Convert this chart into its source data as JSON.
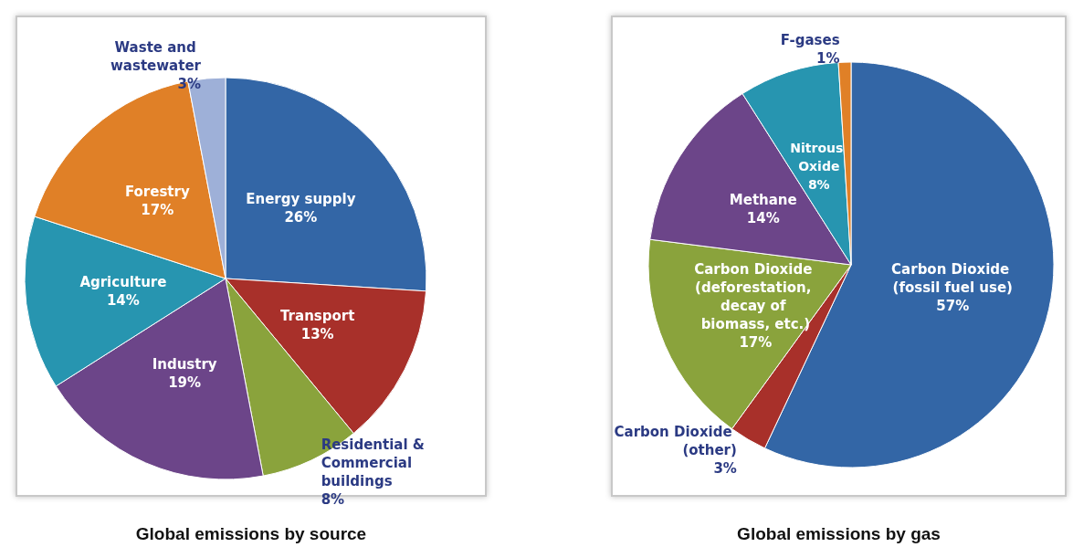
{
  "chart_data": [
    {
      "type": "pie",
      "title": "Global emissions by source",
      "categories": [
        "Energy supply",
        "Transport",
        "Residential & Commercial buildings",
        "Industry",
        "Agriculture",
        "Forestry",
        "Waste and wastewater"
      ],
      "values": [
        26,
        13,
        8,
        19,
        14,
        17,
        3
      ],
      "value_labels": [
        "26%",
        "13%",
        "8%",
        "19%",
        "14%",
        "17%",
        "3%"
      ],
      "colors": [
        "#3366a6",
        "#a8302a",
        "#8aa33c",
        "#6c4589",
        "#2795b0",
        "#e08027",
        "#9eb0d8"
      ],
      "legend": false
    },
    {
      "type": "pie",
      "title": "Global emissions by gas",
      "categories": [
        "Carbon Dioxide (fossil fuel use)",
        "Carbon Dioxide (other)",
        "Carbon Dioxide (deforestation, decay of biomass, etc.)",
        "Methane",
        "Nitrous Oxide",
        "F-gases"
      ],
      "values": [
        57,
        3,
        17,
        14,
        8,
        1
      ],
      "value_labels": [
        "57%",
        "3%",
        "17%",
        "14%",
        "8%",
        "1%"
      ],
      "colors": [
        "#3366a6",
        "#a8302a",
        "#8aa33c",
        "#6c4589",
        "#2795b0",
        "#e08027"
      ],
      "legend": false
    }
  ]
}
